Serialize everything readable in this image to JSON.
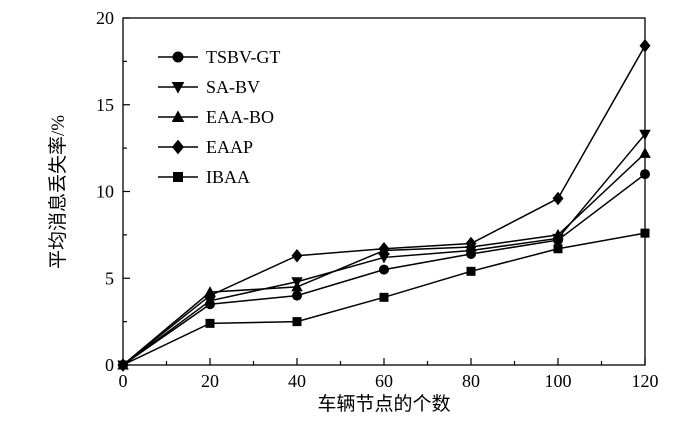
{
  "chart_data": {
    "type": "line",
    "x": [
      0,
      20,
      40,
      60,
      80,
      100,
      120
    ],
    "series": [
      {
        "name": "TSBV-GT",
        "marker": "circle",
        "values": [
          0,
          3.5,
          4.0,
          5.5,
          6.4,
          7.2,
          11.0
        ]
      },
      {
        "name": "SA-BV",
        "marker": "triangle-down",
        "values": [
          0,
          3.7,
          4.8,
          6.2,
          6.6,
          7.3,
          13.3
        ]
      },
      {
        "name": "EAA-BO",
        "marker": "triangle-up",
        "values": [
          0,
          4.2,
          4.5,
          6.6,
          6.8,
          7.5,
          12.2
        ]
      },
      {
        "name": "EAAP",
        "marker": "diamond",
        "values": [
          0,
          4.0,
          6.3,
          6.7,
          7.0,
          9.6,
          18.4
        ]
      },
      {
        "name": "IBAA",
        "marker": "square",
        "values": [
          0,
          2.4,
          2.5,
          3.9,
          5.4,
          6.7,
          7.6
        ]
      }
    ],
    "title": "",
    "xlabel": "车辆节点的个数",
    "ylabel": "平均消息丢失率/%",
    "xlim": [
      0,
      120
    ],
    "ylim": [
      0,
      20
    ],
    "xticks": [
      0,
      20,
      40,
      60,
      80,
      100,
      120
    ],
    "yticks": [
      0,
      5,
      10,
      15,
      20
    ],
    "x_minor_step": 10,
    "y_minor_step": 2.5,
    "grid": "off",
    "legend_position": "upper-left-inside",
    "line_color": "#000000",
    "background_color": "#ffffff"
  }
}
